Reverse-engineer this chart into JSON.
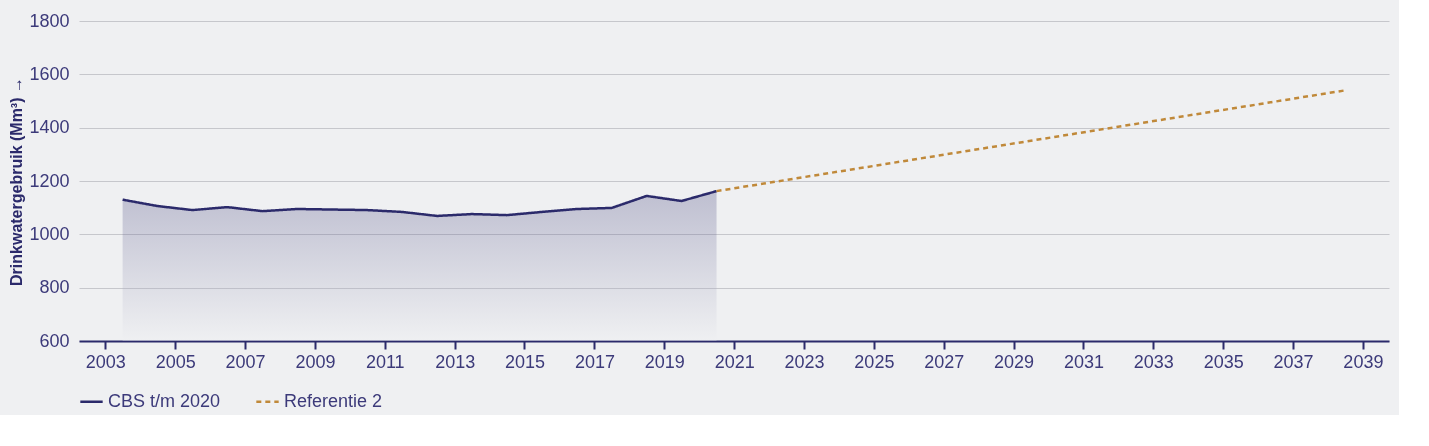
{
  "chart_data": {
    "type": "line",
    "ylabel": "Drinkwatergebruik (Mm³) →",
    "xlim": [
      "2002-04",
      "2039-10"
    ],
    "xticks": [
      "2003",
      "2005",
      "2007",
      "2009",
      "2011",
      "2013",
      "2015",
      "2017",
      "2019",
      "2021",
      "2023",
      "2025",
      "2027",
      "2029",
      "2031",
      "2033",
      "2035",
      "2037",
      "2039"
    ],
    "ylim": [
      600,
      1800
    ],
    "yticks": [
      600,
      800,
      1000,
      1200,
      1400,
      1600,
      1800
    ],
    "grid": "y",
    "legend": "bottom left",
    "series": [
      {
        "name": "CBS t/m 2020",
        "type": "area",
        "color": "#2b2a6b",
        "line_style": "solid",
        "x": [
          "2003-07",
          "2004-07",
          "2005-07",
          "2006-07",
          "2007-07",
          "2008-07",
          "2009-07",
          "2010-07",
          "2011-07",
          "2012-07",
          "2013-07",
          "2014-07",
          "2015-07",
          "2016-07",
          "2017-07",
          "2018-07",
          "2019-07",
          "2020-07"
        ],
        "values": [
          1130,
          1106,
          1091,
          1102,
          1087,
          1095,
          1093,
          1091,
          1084,
          1069,
          1076,
          1072,
          1084,
          1095,
          1099,
          1144,
          1125,
          1162
        ]
      },
      {
        "name": "Referentie 2",
        "type": "line",
        "color": "#c0893a",
        "line_style": "dashed",
        "x": [
          "2020-07",
          "2038-07"
        ],
        "values": [
          1162,
          1540
        ]
      }
    ]
  }
}
